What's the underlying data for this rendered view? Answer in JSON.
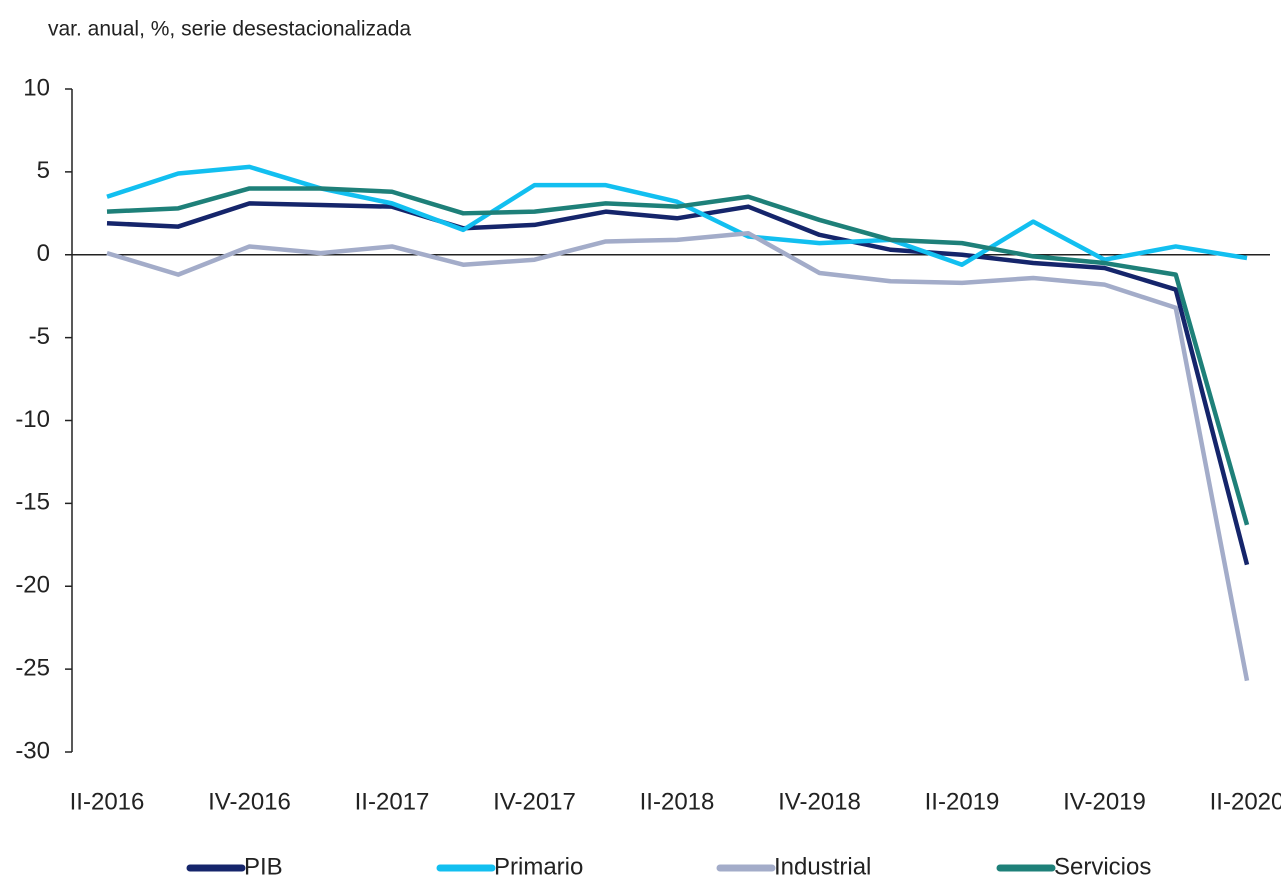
{
  "chart_data": {
    "type": "line",
    "title": "var. anual, %, serie desestacionalizada",
    "categories": [
      "II-2016",
      null,
      "IV-2016",
      null,
      "II-2017",
      null,
      "IV-2017",
      null,
      "II-2018",
      null,
      "IV-2018",
      null,
      "II-2019",
      null,
      "IV-2019",
      null,
      "II-2020"
    ],
    "series": [
      {
        "name": "PIB",
        "color": "#15256b",
        "values": [
          1.9,
          1.7,
          3.1,
          3.0,
          2.9,
          1.6,
          1.8,
          2.6,
          2.2,
          2.9,
          1.2,
          0.3,
          0.0,
          -0.5,
          -0.8,
          -2.1,
          -18.7
        ]
      },
      {
        "name": "Primario",
        "color": "#12bff0",
        "values": [
          3.5,
          4.9,
          5.3,
          4.0,
          3.1,
          1.5,
          4.2,
          4.2,
          3.2,
          1.1,
          0.7,
          0.9,
          -0.6,
          2.0,
          -0.3,
          0.5,
          -0.2
        ]
      },
      {
        "name": "Industrial",
        "color": "#a3acc9",
        "values": [
          0.1,
          -1.2,
          0.5,
          0.1,
          0.5,
          -0.6,
          -0.3,
          0.8,
          0.9,
          1.3,
          -1.1,
          -1.6,
          -1.7,
          -1.4,
          -1.8,
          -3.2,
          -25.7
        ]
      },
      {
        "name": "Servicios",
        "color": "#1e8079",
        "values": [
          2.6,
          2.8,
          4.0,
          4.0,
          3.8,
          2.5,
          2.6,
          3.1,
          2.9,
          3.5,
          2.1,
          0.9,
          0.7,
          -0.1,
          -0.5,
          -1.2,
          -16.3
        ]
      }
    ],
    "ylim": [
      -30,
      10
    ],
    "yticks": [
      10,
      5,
      0,
      -5,
      -10,
      -15,
      -20,
      -25,
      -30
    ],
    "legend": "bottom"
  }
}
